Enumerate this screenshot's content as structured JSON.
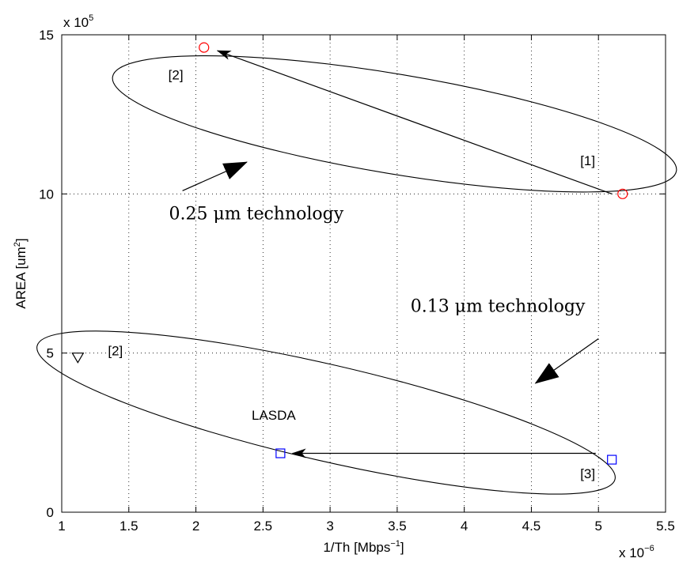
{
  "chart_data": {
    "type": "scatter",
    "title": "",
    "xlabel": "1/Th [Mbps",
    "xlabel_sup": "−1",
    "xlabel_end": "]",
    "ylabel": "AREA [um",
    "ylabel_sup": "2",
    "ylabel_end": "]",
    "xlim": [
      1,
      5.5
    ],
    "ylim": [
      0,
      15
    ],
    "xticks": [
      1,
      1.5,
      2,
      2.5,
      3,
      3.5,
      4,
      4.5,
      5,
      5.5
    ],
    "yticks": [
      0,
      5,
      10,
      15
    ],
    "xtick_labels": [
      "1",
      "1.5",
      "2",
      "2.5",
      "3",
      "3.5",
      "4",
      "4.5",
      "5",
      "5.5"
    ],
    "ytick_labels": [
      "0",
      "5",
      "10",
      "15"
    ],
    "x_multiplier": "x 10",
    "x_multiplier_exp": "−6",
    "y_multiplier": "x 10",
    "y_multiplier_exp": "5",
    "grid": true,
    "points": [
      {
        "x": 2.06,
        "y": 14.6,
        "marker": "circle",
        "color": "#ff0000"
      },
      {
        "x": 5.18,
        "y": 10.0,
        "marker": "circle",
        "color": "#ff0000"
      },
      {
        "x": 2.63,
        "y": 1.85,
        "marker": "square",
        "color": "#0000ff"
      },
      {
        "x": 5.1,
        "y": 1.65,
        "marker": "square",
        "color": "#0000ff"
      },
      {
        "x": 1.12,
        "y": 4.85,
        "marker": "triangle-down",
        "color": "#000000"
      }
    ],
    "arrows": [
      {
        "from": [
          5.1,
          10.0
        ],
        "to": [
          2.16,
          14.5
        ]
      },
      {
        "from": [
          4.98,
          1.85
        ],
        "to": [
          2.72,
          1.85
        ]
      }
    ],
    "ellipses": [
      {
        "cx": 3.48,
        "cy": 12.2,
        "rx": 2.13,
        "ry": 1.45,
        "angle_deg": 9.5
      },
      {
        "cx": 2.97,
        "cy": 3.13,
        "rx": 2.21,
        "ry": 1.4,
        "angle_deg": 13
      }
    ],
    "annotations": [
      {
        "text": "[2]",
        "x": 1.85,
        "y": 13.6,
        "font": "sans"
      },
      {
        "text": "[1]",
        "x": 4.92,
        "y": 10.9,
        "font": "sans"
      },
      {
        "text": "[2]",
        "x": 1.4,
        "y": 4.93,
        "font": "sans"
      },
      {
        "text": "LASDA",
        "x": 2.58,
        "y": 2.9,
        "font": "sans"
      },
      {
        "text": "[3]",
        "x": 4.92,
        "y": 1.07,
        "font": "sans"
      },
      {
        "text": "0.25 μm technology",
        "x": 2.45,
        "y": 9.2,
        "font": "serif"
      },
      {
        "text": "0.13 μm technology",
        "x": 4.25,
        "y": 6.3,
        "font": "serif"
      }
    ],
    "callout_arrows": [
      {
        "from": [
          1.9,
          10.1
        ],
        "to": [
          2.38,
          11.0
        ]
      },
      {
        "from": [
          5.0,
          5.45
        ],
        "to": [
          4.53,
          4.05
        ]
      }
    ]
  }
}
